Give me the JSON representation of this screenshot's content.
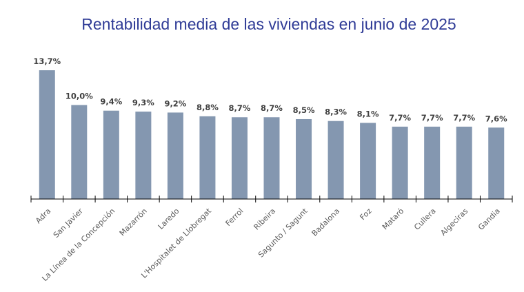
{
  "chart_data": {
    "type": "bar",
    "title": "Rentabilidad media de las viviendas en junio de 2025",
    "xlabel": "",
    "ylabel": "",
    "categories": [
      "Adra",
      "San Javier",
      "La Línea de la Concepción",
      "Mazarrón",
      "Laredo",
      "L'Hospitalet de Llobregat",
      "Ferrol",
      "Ribeira",
      "Sagunto / Sagunt",
      "Badalona",
      "Foz",
      "Mataró",
      "Cullera",
      "Algeciras",
      "Gandia"
    ],
    "values": [
      13.7,
      10.0,
      9.4,
      9.3,
      9.2,
      8.8,
      8.7,
      8.7,
      8.5,
      8.3,
      8.1,
      7.7,
      7.7,
      7.7,
      7.6
    ],
    "data_labels": [
      "13,7%",
      "10,0%",
      "9,4%",
      "9,3%",
      "9,2%",
      "8,8%",
      "8,7%",
      "8,7%",
      "8,5%",
      "8,3%",
      "8,1%",
      "7,7%",
      "7,7%",
      "7,7%",
      "7,6%"
    ],
    "ylim": [
      0,
      13.7
    ],
    "grid": false,
    "legend": "none",
    "colors": {
      "bar": "#8497b0",
      "title": "#2f3b96",
      "axis": "#000000"
    }
  }
}
